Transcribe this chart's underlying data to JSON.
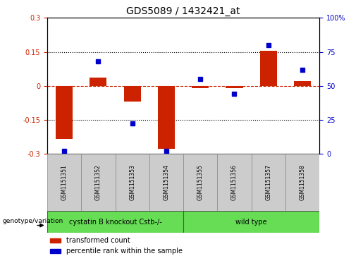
{
  "title": "GDS5089 / 1432421_at",
  "samples": [
    "GSM1151351",
    "GSM1151352",
    "GSM1151353",
    "GSM1151354",
    "GSM1151355",
    "GSM1151356",
    "GSM1151357",
    "GSM1151358"
  ],
  "red_values": [
    -0.235,
    0.035,
    -0.07,
    -0.28,
    -0.01,
    -0.01,
    0.155,
    0.02
  ],
  "blue_values": [
    2,
    68,
    22,
    2,
    55,
    44,
    80,
    62
  ],
  "ylim_left": [
    -0.3,
    0.3
  ],
  "ylim_right": [
    0,
    100
  ],
  "yticks_left": [
    -0.3,
    -0.15,
    0,
    0.15,
    0.3
  ],
  "yticks_right": [
    0,
    25,
    50,
    75,
    100
  ],
  "ytick_labels_left": [
    "-0.3",
    "-0.15",
    "0",
    "0.15",
    "0.3"
  ],
  "ytick_labels_right": [
    "0",
    "25",
    "50",
    "75",
    "100%"
  ],
  "group1_label": "cystatin B knockout Cstb-/-",
  "group2_label": "wild type",
  "group_row_label": "genotype/variation",
  "legend_red": "transformed count",
  "legend_blue": "percentile rank within the sample",
  "red_color": "#cc2200",
  "blue_color": "#0000cc",
  "bar_width": 0.5,
  "dotted_line_y": [
    0.15,
    -0.15
  ],
  "green_color": "#66dd55",
  "gray_color": "#cccccc",
  "sample_box_color": "#cccccc"
}
